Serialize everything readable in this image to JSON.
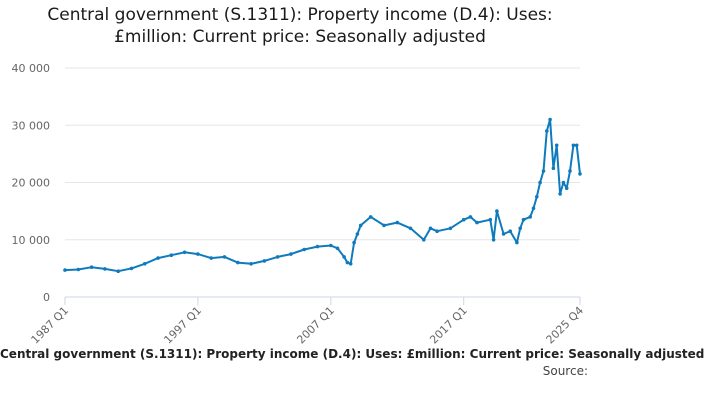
{
  "title_line1": "Central government (S.1311): Property income (D.4): Uses:",
  "title_line2": "£million: Current price: Seasonally adjusted",
  "footer_caption": "Central government (S.1311): Property income (D.4): Uses: £million: Current price: Seasonally adjusted",
  "source_label": "Source:",
  "colors": {
    "line": "#0f7bbd",
    "grid": "#e6e6e6",
    "axis": "#ccd6eb"
  },
  "chart_data": {
    "type": "line",
    "title": "Central government (S.1311): Property income (D.4): Uses: £million: Current price: Seasonally adjusted",
    "xlabel": "",
    "ylabel": "",
    "ylim": [
      0,
      40000
    ],
    "yticks": [
      0,
      10000,
      20000,
      30000,
      40000
    ],
    "ytick_labels": [
      "0",
      "10 000",
      "20 000",
      "30 000",
      "40 000"
    ],
    "xticks": [
      "1987 Q1",
      "1997 Q1",
      "2007 Q1",
      "2017 Q1",
      "2025 Q4"
    ],
    "grid": true,
    "legend": "none",
    "series": [
      {
        "x": [
          "1987 Q1",
          "1988 Q1",
          "1989 Q1",
          "1990 Q1",
          "1991 Q1",
          "1992 Q1",
          "1993 Q1",
          "1994 Q1",
          "1995 Q1",
          "1996 Q1",
          "1997 Q1",
          "1998 Q1",
          "1999 Q1",
          "2000 Q1",
          "2001 Q1",
          "2002 Q1",
          "2003 Q1",
          "2004 Q1",
          "2005 Q1",
          "2006 Q1",
          "2007 Q1",
          "2007 Q3",
          "2008 Q1",
          "2008 Q2",
          "2008 Q3",
          "2008 Q4",
          "2009 Q1",
          "2009 Q2",
          "2010 Q1",
          "2011 Q1",
          "2012 Q1",
          "2013 Q1",
          "2014 Q1",
          "2014 Q3",
          "2015 Q1",
          "2016 Q1",
          "2017 Q1",
          "2017 Q3",
          "2018 Q1",
          "2019 Q1",
          "2019 Q2",
          "2019 Q3",
          "2020 Q1",
          "2020 Q3",
          "2021 Q1",
          "2021 Q2",
          "2021 Q3",
          "2022 Q1",
          "2022 Q2",
          "2022 Q3",
          "2022 Q4",
          "2023 Q1",
          "2023 Q2",
          "2023 Q3",
          "2023 Q4",
          "2024 Q1",
          "2024 Q2",
          "2024 Q3",
          "2024 Q4",
          "2025 Q1",
          "2025 Q2",
          "2025 Q3",
          "2025 Q4"
        ],
        "y": [
          4700,
          4800,
          5200,
          4900,
          4500,
          5000,
          5800,
          6800,
          7300,
          7800,
          7500,
          6800,
          7000,
          6000,
          5800,
          6300,
          7000,
          7500,
          8300,
          8800,
          9000,
          8500,
          7000,
          6000,
          5800,
          9500,
          11000,
          12500,
          14000,
          12500,
          13000,
          12000,
          10000,
          12000,
          11500,
          12000,
          13500,
          14000,
          13000,
          13500,
          10000,
          15000,
          11000,
          11500,
          9500,
          12000,
          13500,
          14000,
          15500,
          17500,
          20000,
          22000,
          29000,
          31000,
          22500,
          26500,
          18000,
          20000,
          19000,
          22000,
          26500,
          26500,
          21500
        ]
      }
    ]
  }
}
